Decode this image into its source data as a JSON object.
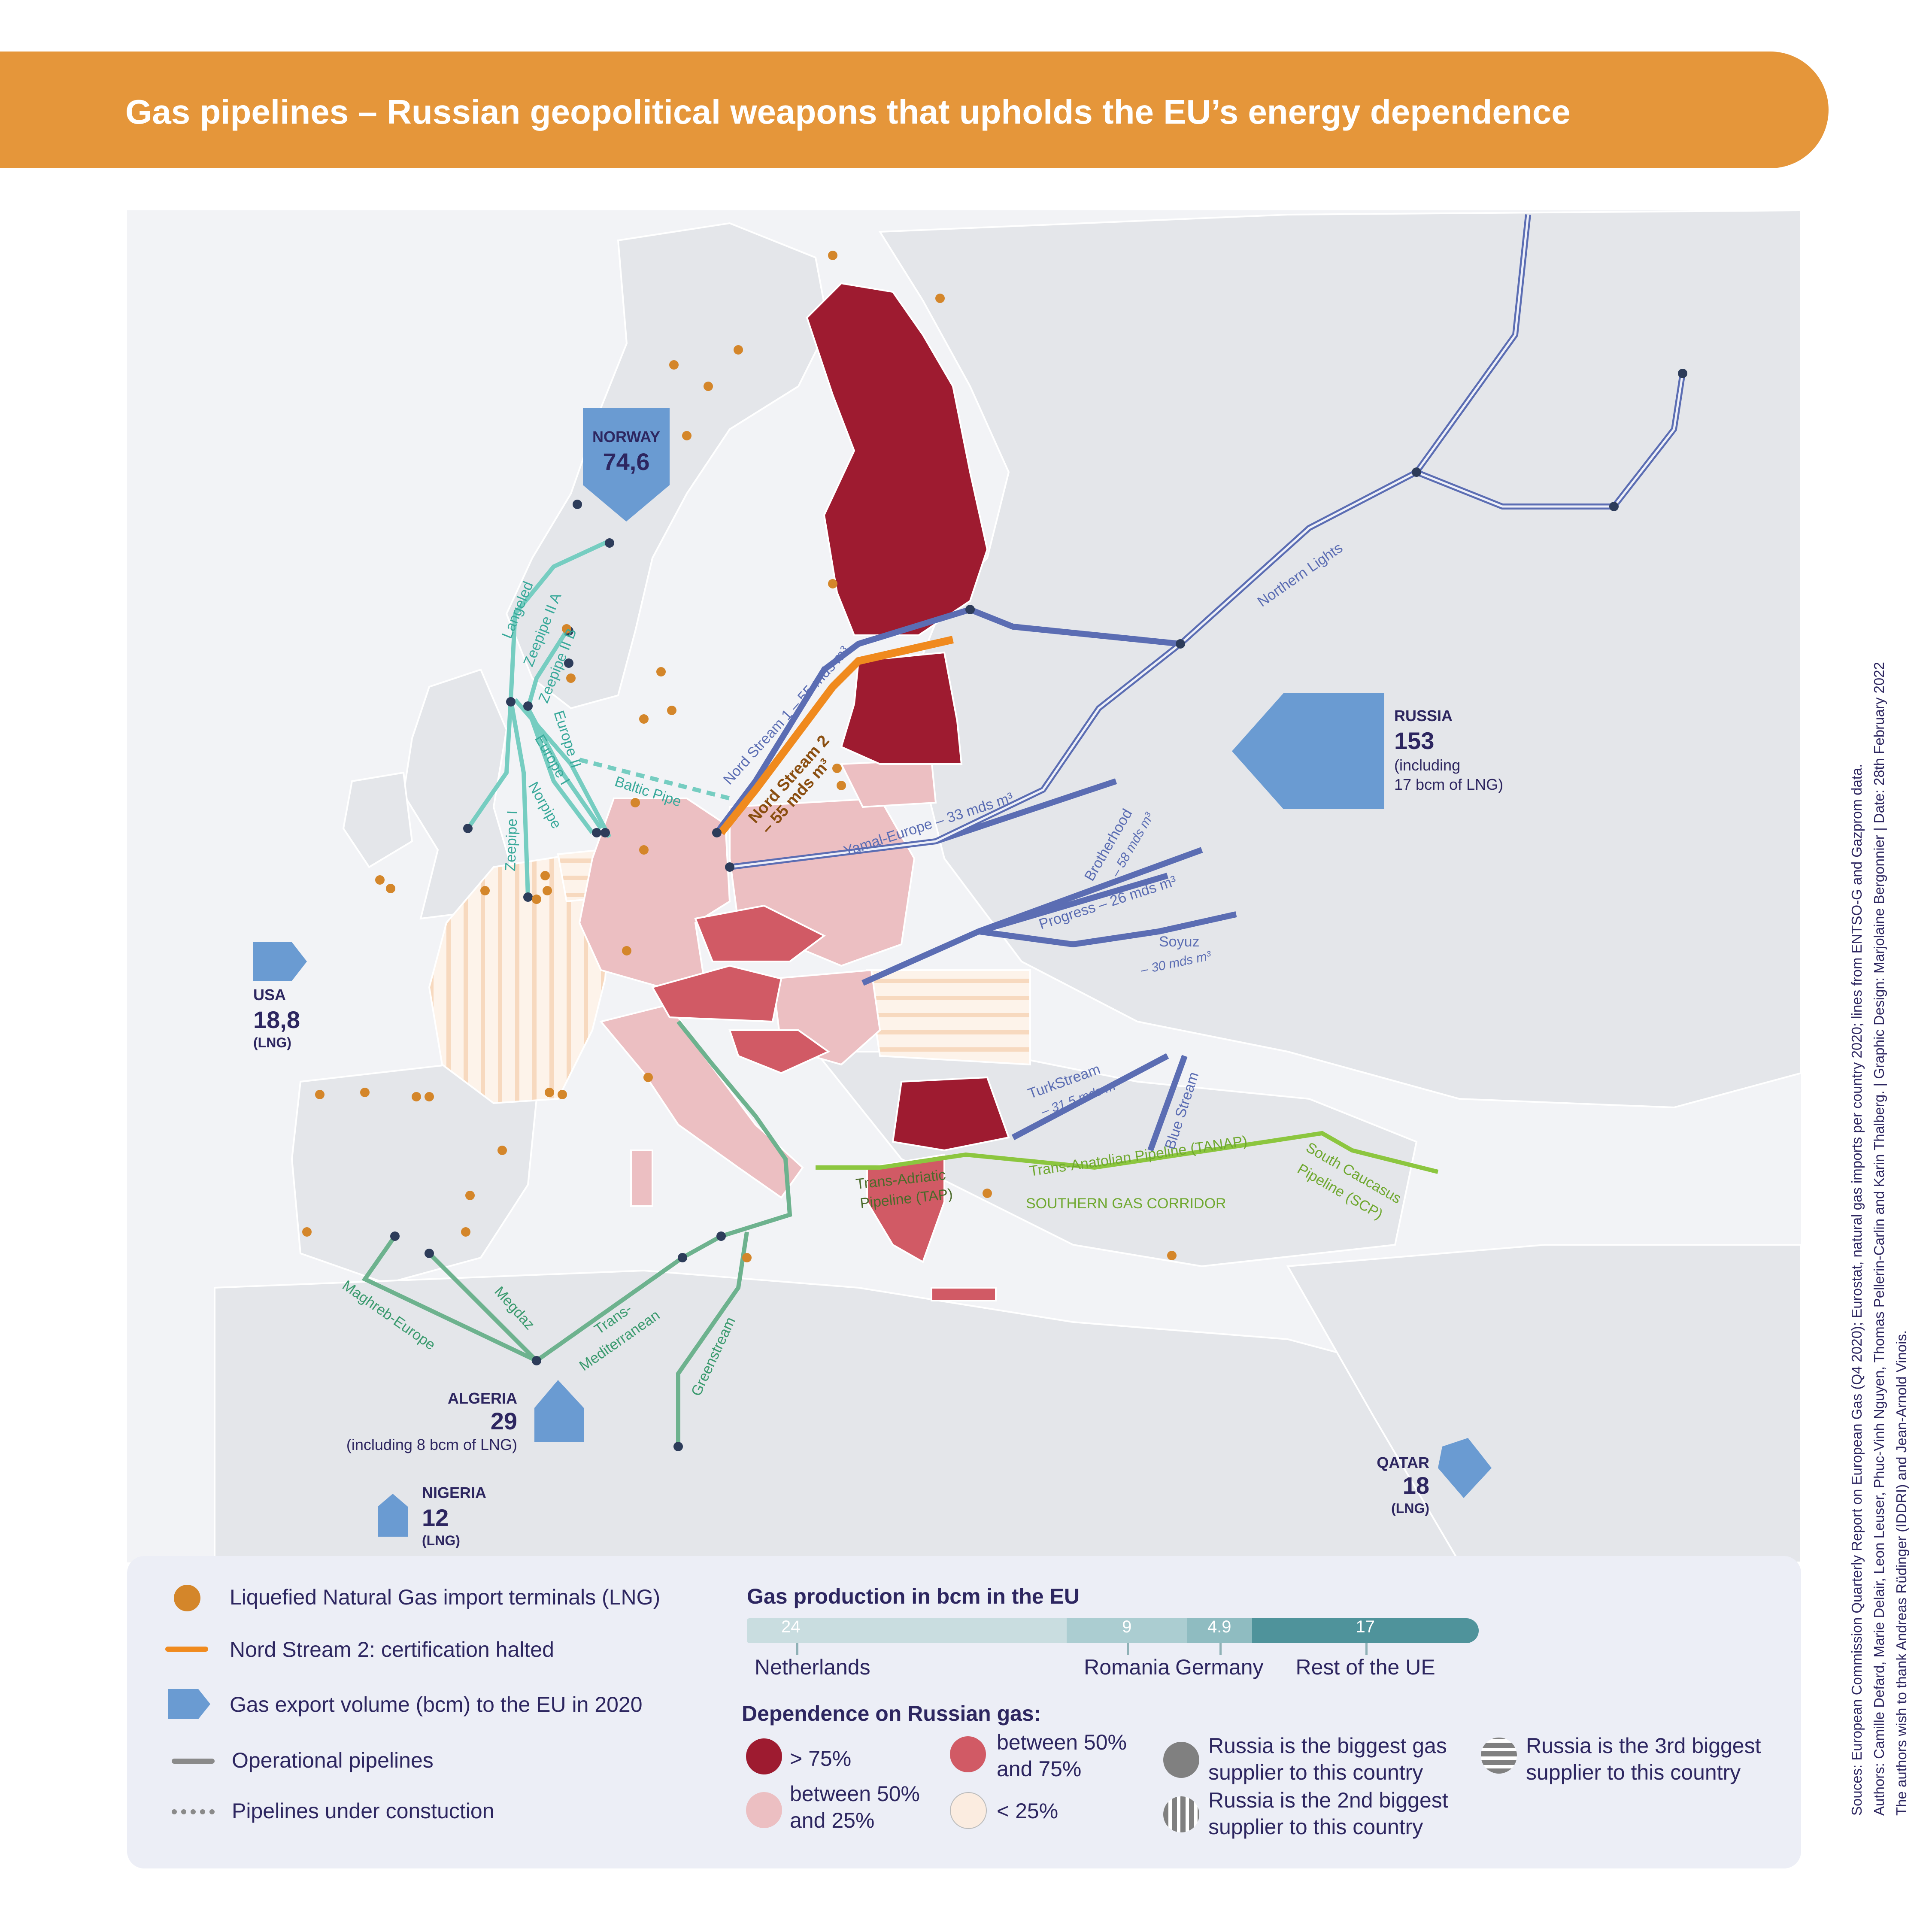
{
  "title": "Gas pipelines – Russian geopolitical weapons that upholds the EU’s energy dependence",
  "colors": {
    "banner": "#e5963a",
    "dependence_over_75": "#9e1b30",
    "dependence_50_75": "#d15a65",
    "dependence_25_50": "#ecbfc2",
    "dependence_under_25": "#fbece0",
    "lng_terminal": "#d4862a",
    "nord_stream_2": "#f08a1e",
    "russian_pipelines": "#5b6db3",
    "norway_pipelines": "#76cdc1",
    "north_africa_pipelines": "#6db28e",
    "southern_corridor": "#8cc63f",
    "export_arrow": "#6a9bd2",
    "land": "#e6e8ec",
    "sea": "#f4f5f7"
  },
  "exporters": {
    "norway": {
      "name": "NORWAY",
      "value": "74,6",
      "icon": "export-arrow-icon"
    },
    "russia": {
      "name": "RUSSIA",
      "value": "153",
      "note1": "(including",
      "note2": "17 bcm of LNG)",
      "icon": "export-arrow-icon"
    },
    "usa": {
      "name": "USA",
      "value": "18,8",
      "note": "(LNG)",
      "icon": "export-arrow-icon"
    },
    "algeria": {
      "name": "ALGERIA",
      "value": "29",
      "note": "(including 8 bcm of LNG)",
      "icon": "export-arrow-icon"
    },
    "nigeria": {
      "name": "NIGERIA",
      "value": "12",
      "note": "(LNG)",
      "icon": "export-arrow-icon"
    },
    "qatar": {
      "name": "QATAR",
      "value": "18",
      "note": "(LNG)",
      "icon": "export-arrow-icon"
    }
  },
  "pipelines": {
    "langeled": "Langeled",
    "zeepipe_iia": "Zeepipe II A",
    "zeepipe_iib": "Zeepipe II B",
    "europe_ii": "Europe II",
    "europe_i": "Europe I",
    "norpipe": "Norpipe",
    "zeepipe_i": "Zeepipe I",
    "baltic_pipe": "Baltic Pipe",
    "nord_stream_1": "Nord Stream 1 – 55 mds m³",
    "nord_stream_2_line1": "Nord Stream 2",
    "nord_stream_2_line2": "– 55 mds m³",
    "yamal_europe": "Yamal-Europe – 33 mds m³",
    "northern_lights": "Northern Lights",
    "brotherhood_line1": "Brotherhood",
    "brotherhood_line2": "– 58 mds m³",
    "progress": "Progress – 26 mds m³",
    "soyuz_line1": "Soyuz",
    "soyuz_line2": "– 30 mds m³",
    "turkstream_line1": "TurkStream",
    "turkstream_line2": "– 31,5 mds m³",
    "blue_stream": "Blue Stream",
    "tanap": "Trans-Anatolian Pipeline (TANAP)",
    "southern_corridor": "SOUTHERN GAS CORRIDOR",
    "scp_line1": "South Caucasus",
    "scp_line2": "Pipeline (SCP)",
    "tap_line1": "Trans-Adriatic",
    "tap_line2": "Pipeline (TAP)",
    "maghreb_europe": "Maghreb-Europe",
    "medgaz": "Megdaz",
    "transmed_line1": "Trans-",
    "transmed_line2": "Mediterranean",
    "greenstream": "Greenstream"
  },
  "legend": {
    "lng": "Liquefied Natural Gas import terminals (LNG)",
    "nord_stream_2": "Nord Stream 2: certification halted",
    "export_volume": "Gas export volume (bcm) to the EU in 2020",
    "operational": "Operational pipelines",
    "under_construction": "Pipelines under constuction",
    "production_title": "Gas production in bcm in the EU",
    "dependence_title": "Dependence on Russian gas:",
    "dep_over_75": "> 75%",
    "dep_50_75_line1": "between 50%",
    "dep_50_75_line2": "and 75%",
    "dep_25_50_line1": "between 50%",
    "dep_25_50_line2": "and 25%",
    "dep_under_25": "< 25%",
    "biggest_line1": "Russia is the biggest gas",
    "biggest_line2": "supplier to this country",
    "second_line1": "Russia is the 2nd biggest",
    "second_line2": "supplier to this country",
    "third_line1": "Russia is the 3rd biggest",
    "third_line2": "supplier to this country"
  },
  "chart_data": {
    "type": "bar",
    "title": "Gas production in bcm in the EU",
    "categories": [
      "Netherlands",
      "Romania",
      "Germany",
      "Rest of the UE"
    ],
    "values": [
      24,
      9,
      4.9,
      17
    ],
    "value_labels": [
      "24",
      "9",
      "4.9",
      "17"
    ],
    "stacked": true,
    "colors": [
      "#c9dde0",
      "#abcdd1",
      "#8fbcc1",
      "#4f939b"
    ]
  },
  "sources": {
    "line1": "Souces: European Commission Quarterly Report on European Gas (Q4 2020); Eurostat, natural gas imports per country 2020; lines from ENTSO-G and Gazprom data.",
    "line2": "Authors: Camille Defard, Marie Delair, Leon Leuser, Phuc-Vinh Nguyen, Thomas Pellerin-Carlin and Karin Thalberg. | Graphic Design: Marjolaine Bergonnier | Date: 28th February 2022",
    "line3": "The authors wish to thank Andreas Rüdinger (IDDRI) and Jean-Arnold Vinois."
  }
}
